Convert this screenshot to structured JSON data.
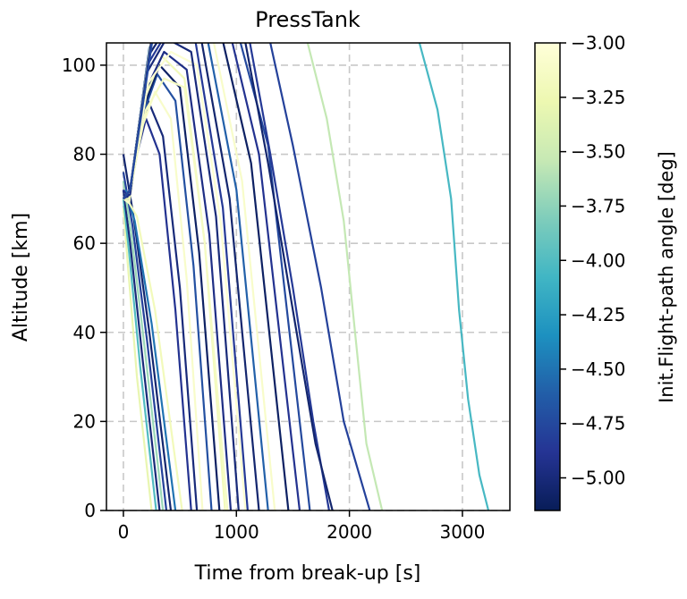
{
  "chart_data": {
    "type": "line",
    "title": "PressTank",
    "xlabel": "Time from break-up [s]",
    "ylabel": "Altitude [km]",
    "xlim": [
      -150,
      3420
    ],
    "ylim": [
      0,
      105
    ],
    "x_ticks": [
      0,
      1000,
      2000,
      3000
    ],
    "x_tick_labels": [
      "0",
      "1000",
      "2000",
      "3000"
    ],
    "y_ticks": [
      0,
      20,
      40,
      60,
      80,
      100
    ],
    "y_tick_labels": [
      "0",
      "20",
      "40",
      "60",
      "80",
      "100"
    ],
    "grid": true,
    "grid_style": "dashed",
    "colorbar": {
      "label": "Init.Flight-path angle [deg]",
      "range": [
        -5.15,
        -3.0
      ],
      "colormap": "YlGnBu_r",
      "ticks": [
        -3.0,
        -3.25,
        -3.5,
        -3.75,
        -4.0,
        -4.25,
        -4.5,
        -4.75,
        -5.0
      ],
      "tick_labels": [
        "−3.00",
        "−3.25",
        "−3.50",
        "−3.75",
        "−4.00",
        "−4.25",
        "−4.50",
        "−4.75",
        "−5.00"
      ]
    },
    "series": [
      {
        "angle": -3.3,
        "x": [
          0,
          40,
          120,
          250
        ],
        "y": [
          68,
          55,
          30,
          0
        ]
      },
      {
        "angle": -4.0,
        "x": [
          0,
          50,
          150,
          290
        ],
        "y": [
          70,
          58,
          32,
          0
        ]
      },
      {
        "angle": -5.0,
        "x": [
          0,
          60,
          170,
          320
        ],
        "y": [
          72,
          60,
          34,
          0
        ]
      },
      {
        "angle": -3.7,
        "x": [
          0,
          70,
          190,
          350
        ],
        "y": [
          74,
          62,
          36,
          0
        ]
      },
      {
        "angle": -4.8,
        "x": [
          0,
          80,
          210,
          380
        ],
        "y": [
          76,
          64,
          38,
          0
        ]
      },
      {
        "angle": -5.05,
        "x": [
          0,
          90,
          230,
          420
        ],
        "y": [
          80,
          66,
          40,
          0
        ]
      },
      {
        "angle": -4.5,
        "x": [
          20,
          100,
          250,
          460
        ],
        "y": [
          72,
          65,
          42,
          0
        ]
      },
      {
        "angle": -3.2,
        "x": [
          30,
          120,
          280,
          520
        ],
        "y": [
          70,
          66,
          45,
          0
        ]
      },
      {
        "angle": -4.9,
        "x": [
          0,
          50,
          120,
          200,
          320,
          460,
          600
        ],
        "y": [
          72,
          70,
          80,
          88,
          80,
          45,
          0
        ]
      },
      {
        "angle": -5.0,
        "x": [
          0,
          50,
          130,
          220,
          350,
          500,
          650
        ],
        "y": [
          71,
          70,
          82,
          92,
          84,
          50,
          0
        ]
      },
      {
        "angle": -3.1,
        "x": [
          0,
          50,
          150,
          280,
          420,
          560,
          700
        ],
        "y": [
          70,
          69,
          85,
          94,
          88,
          52,
          0
        ]
      },
      {
        "angle": -4.7,
        "x": [
          0,
          50,
          160,
          300,
          460,
          620,
          780
        ],
        "y": [
          70,
          70,
          88,
          98,
          92,
          55,
          0
        ]
      },
      {
        "angle": -5.1,
        "x": [
          0,
          50,
          170,
          320,
          500,
          670,
          850
        ],
        "y": [
          70,
          71,
          90,
          100,
          95,
          58,
          0
        ]
      },
      {
        "angle": -3.2,
        "x": [
          0,
          50,
          180,
          340,
          540,
          720,
          900
        ],
        "y": [
          70,
          70,
          92,
          102,
          97,
          60,
          0
        ]
      },
      {
        "angle": -4.95,
        "x": [
          0,
          60,
          190,
          360,
          560,
          760,
          950
        ],
        "y": [
          70,
          71,
          94,
          103,
          99,
          62,
          0
        ]
      },
      {
        "angle": -3.15,
        "x": [
          0,
          60,
          200,
          360,
          540,
          720,
          920
        ],
        "y": [
          70,
          72,
          90,
          97,
          95,
          60,
          0
        ]
      },
      {
        "angle": -3.05,
        "x": [
          0,
          60,
          220,
          420,
          650,
          860,
          1080
        ],
        "y": [
          70,
          72,
          96,
          103,
          100,
          65,
          0
        ]
      },
      {
        "angle": -5.0,
        "x": [
          0,
          60,
          200,
          380,
          600,
          820,
          1020
        ],
        "y": [
          70,
          72,
          98,
          106,
          103,
          66,
          0
        ]
      },
      {
        "angle": -4.85,
        "x": [
          0,
          60,
          210,
          400,
          640,
          880,
          1100
        ],
        "y": [
          70,
          72,
          100,
          108,
          105,
          68,
          0
        ]
      },
      {
        "angle": -5.05,
        "x": [
          0,
          60,
          220,
          420,
          680,
          940,
          1200
        ],
        "y": [
          70,
          72,
          102,
          110,
          107,
          70,
          0
        ]
      },
      {
        "angle": -4.6,
        "x": [
          0,
          60,
          230,
          440,
          720,
          1000,
          1280
        ],
        "y": [
          70,
          72,
          104,
          112,
          109,
          72,
          0
        ]
      },
      {
        "angle": -3.1,
        "x": [
          0,
          60,
          240,
          460,
          760,
          1050,
          1340
        ],
        "y": [
          70,
          72,
          105,
          113,
          110,
          74,
          0
        ]
      },
      {
        "angle": -5.1,
        "x": [
          0,
          60,
          250,
          480,
          820,
          1130,
          1460
        ],
        "y": [
          70,
          72,
          106,
          115,
          112,
          78,
          0
        ]
      },
      {
        "angle": -4.9,
        "x": [
          0,
          60,
          260,
          500,
          880,
          1200,
          1560
        ],
        "y": [
          70,
          72,
          107,
          117,
          114,
          80,
          0
        ]
      },
      {
        "angle": -4.75,
        "x": [
          0,
          60,
          270,
          520,
          920,
          1280,
          1650
        ],
        "y": [
          70,
          72,
          108,
          118,
          116,
          82,
          0
        ]
      },
      {
        "angle": -4.85,
        "x": [
          1120,
          1300,
          1500,
          1680,
          1820
        ],
        "y": [
          105,
          80,
          50,
          20,
          0
        ]
      },
      {
        "angle": -4.8,
        "x": [
          1300,
          1500,
          1750,
          1950,
          2180
        ],
        "y": [
          105,
          82,
          50,
          20,
          0
        ]
      },
      {
        "angle": -5.05,
        "x": [
          1080,
          1280,
          1500,
          1700,
          1850
        ],
        "y": [
          105,
          78,
          45,
          15,
          0
        ]
      },
      {
        "angle": -3.55,
        "x": [
          1630,
          1800,
          1950,
          2050,
          2150,
          2290
        ],
        "y": [
          105,
          88,
          65,
          40,
          15,
          0
        ]
      },
      {
        "angle": -4.05,
        "x": [
          2620,
          2780,
          2900,
          2970,
          3050,
          3150,
          3230
        ],
        "y": [
          105,
          90,
          70,
          45,
          25,
          8,
          0
        ]
      }
    ]
  }
}
